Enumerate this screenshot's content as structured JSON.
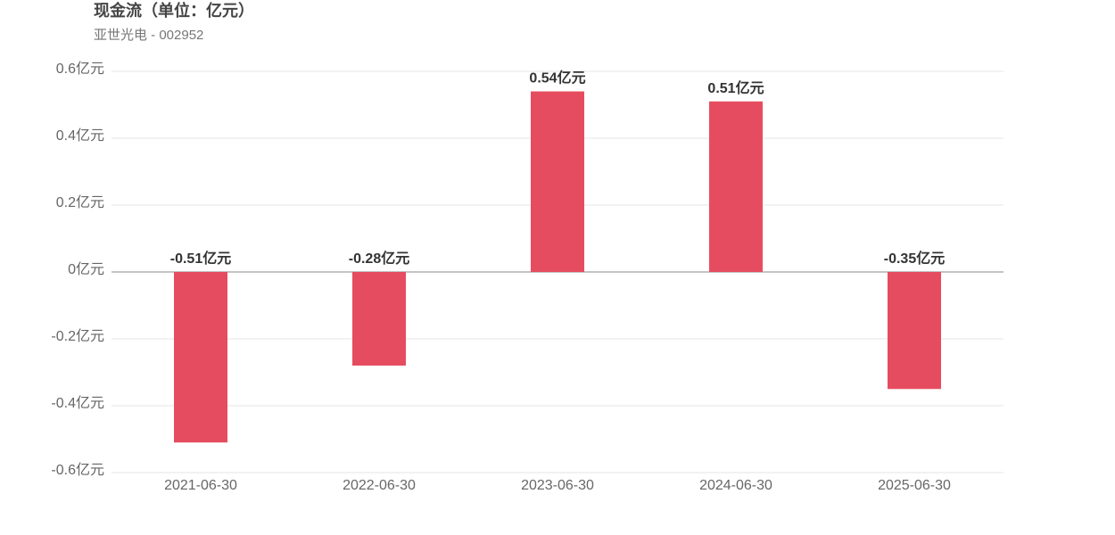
{
  "chart_data": {
    "type": "bar",
    "title": "现金流（单位：亿元）",
    "subtitle": "亚世光电 - 002952",
    "categories": [
      "2021-06-30",
      "2022-06-30",
      "2023-06-30",
      "2024-06-30",
      "2025-06-30"
    ],
    "values": [
      -0.51,
      -0.28,
      0.54,
      0.51,
      -0.35
    ],
    "value_labels": [
      "-0.51亿元",
      "-0.28亿元",
      "0.54亿元",
      "0.51亿元",
      "-0.35亿元"
    ],
    "color": "#e64c5f",
    "ylim": [
      -0.6,
      0.6
    ],
    "yticks": [
      {
        "value": -0.6,
        "label": "-0.6亿元"
      },
      {
        "value": -0.4,
        "label": "-0.4亿元"
      },
      {
        "value": -0.2,
        "label": "-0.2亿元"
      },
      {
        "value": 0,
        "label": "0亿元"
      },
      {
        "value": 0.2,
        "label": "0.2亿元"
      },
      {
        "value": 0.4,
        "label": "0.4亿元"
      },
      {
        "value": 0.6,
        "label": "0.6亿元"
      }
    ],
    "grid": true
  }
}
